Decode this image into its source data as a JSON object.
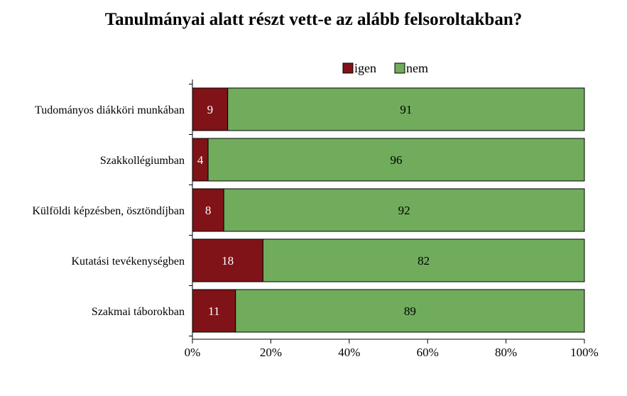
{
  "chart_data": {
    "type": "bar",
    "stacked": true,
    "orientation": "horizontal",
    "title": "Tanulmányai alatt részt vett-e az alább felsoroltakban?",
    "categories": [
      "Tudományos diákköri munkában",
      "Szakkollégiumban",
      "Külföldi képzésben, ösztöndíjban",
      "Kutatási tevékenységben",
      "Szakmai táborokban"
    ],
    "series": [
      {
        "name": "igen",
        "color": "#7f1318",
        "values": [
          9,
          4,
          8,
          18,
          11
        ]
      },
      {
        "name": "nem",
        "color": "#70ac5c",
        "values": [
          91,
          96,
          92,
          82,
          89
        ]
      }
    ],
    "x_ticks": [
      "0%",
      "20%",
      "40%",
      "60%",
      "80%",
      "100%"
    ],
    "xlim": [
      0,
      100
    ],
    "legend_position": "top",
    "grid": false
  }
}
